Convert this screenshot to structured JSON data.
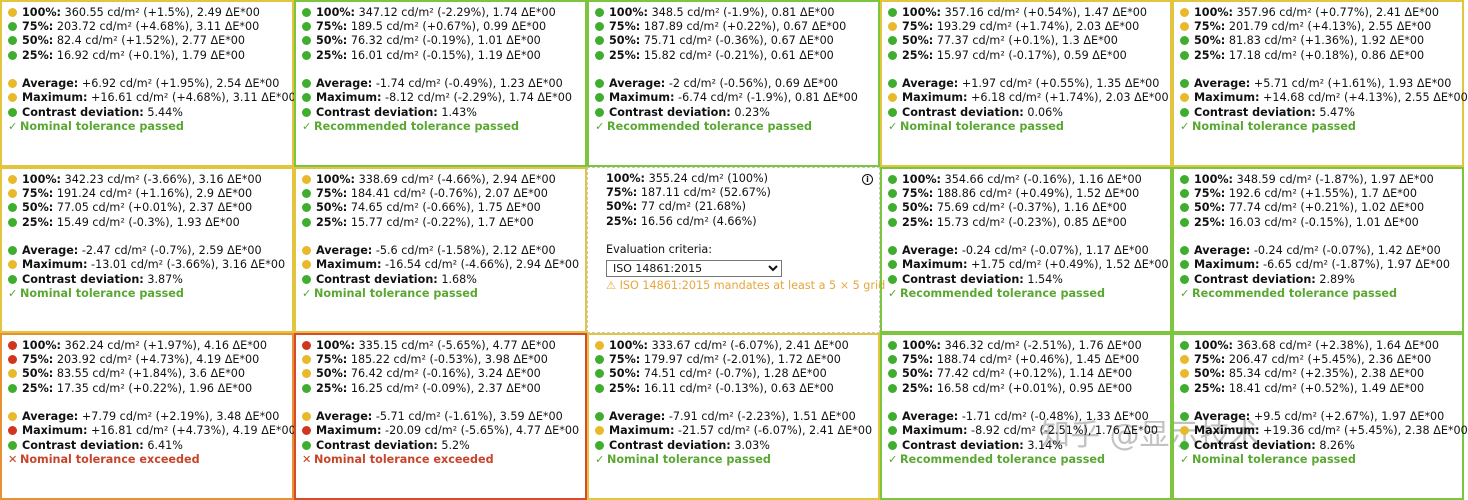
{
  "colors": {
    "green": "#3fae2e",
    "yellow": "#e8b92a",
    "orange": "#e87f24",
    "red": "#d0351e",
    "pass_text": "#5aa832",
    "fail_text": "#c8442a",
    "warning_text": "#e8a63b"
  },
  "labels": {
    "p100": "100%:",
    "p75": "75%:",
    "p50": "50%:",
    "p25": "25%:",
    "average": "Average:",
    "maximum": "Maximum:",
    "contrast": "Contrast deviation:"
  },
  "center": {
    "r100": " 355.24 cd/m² (100%)",
    "r75": " 187.11 cd/m² (52.67%)",
    "r50": " 77 cd/m² (21.68%)",
    "r25": " 16.56 cd/m² (4.66%)",
    "criteria_label": "Evaluation criteria:",
    "criteria_value": "ISO 14861:2015",
    "warning_icon": "warning-triangle-icon",
    "warning": "ISO 14861:2015 mandates at least a 5 × 5 grid",
    "info_icon": "info-icon"
  },
  "cells": [
    {
      "border": "yellow",
      "dots": [
        "yellow",
        "green",
        "green",
        "green",
        "yellow",
        "yellow",
        "green"
      ],
      "r100": " 360.55 cd/m² (+1.5%), 2.49 ΔE*00",
      "r75": " 203.72 cd/m² (+4.68%), 3.11 ΔE*00",
      "r50": " 82.4 cd/m² (+1.52%), 2.77 ΔE*00",
      "r25": " 16.92 cd/m² (+0.1%), 1.79 ΔE*00",
      "average": " +6.92 cd/m² (+1.95%), 2.54 ΔE*00",
      "maximum": " +16.61 cd/m² (+4.68%), 3.11 ΔE*00",
      "contrast": " 5.44%",
      "status": "pass",
      "status_text": "Nominal tolerance passed"
    },
    {
      "border": "green",
      "dots": [
        "green",
        "green",
        "green",
        "green",
        "green",
        "green",
        "green"
      ],
      "r100": " 347.12 cd/m² (-2.29%), 1.74 ΔE*00",
      "r75": " 189.5 cd/m² (+0.67%), 0.99 ΔE*00",
      "r50": " 76.32 cd/m² (-0.19%), 1.01 ΔE*00",
      "r25": " 16.01 cd/m² (-0.15%), 1.19 ΔE*00",
      "average": " -1.74 cd/m² (-0.49%), 1.23 ΔE*00",
      "maximum": " -8.12 cd/m² (-2.29%), 1.74 ΔE*00",
      "contrast": " 1.43%",
      "status": "pass",
      "status_text": "Recommended tolerance passed"
    },
    {
      "border": "green",
      "dots": [
        "green",
        "green",
        "green",
        "green",
        "green",
        "green",
        "green"
      ],
      "r100": " 348.5 cd/m² (-1.9%), 0.81 ΔE*00",
      "r75": " 187.89 cd/m² (+0.22%), 0.67 ΔE*00",
      "r50": " 75.71 cd/m² (-0.36%), 0.67 ΔE*00",
      "r25": " 15.82 cd/m² (-0.21%), 0.61 ΔE*00",
      "average": " -2 cd/m² (-0.56%), 0.69 ΔE*00",
      "maximum": " -6.74 cd/m² (-1.9%), 0.81 ΔE*00",
      "contrast": " 0.23%",
      "status": "pass",
      "status_text": "Recommended tolerance passed"
    },
    {
      "border": "yellow",
      "dots": [
        "green",
        "yellow",
        "green",
        "green",
        "green",
        "yellow",
        "green"
      ],
      "r100": " 357.16 cd/m² (+0.54%), 1.47 ΔE*00",
      "r75": " 193.29 cd/m² (+1.74%), 2.03 ΔE*00",
      "r50": " 77.37 cd/m² (+0.1%), 1.3 ΔE*00",
      "r25": " 15.97 cd/m² (-0.17%), 0.59 ΔE*00",
      "average": " +1.97 cd/m² (+0.55%), 1.35 ΔE*00",
      "maximum": " +6.18 cd/m² (+1.74%), 2.03 ΔE*00",
      "contrast": " 0.06%",
      "status": "pass",
      "status_text": "Nominal tolerance passed"
    },
    {
      "border": "yellow",
      "dots": [
        "yellow",
        "yellow",
        "green",
        "green",
        "green",
        "yellow",
        "green"
      ],
      "r100": " 357.96 cd/m² (+0.77%), 2.41 ΔE*00",
      "r75": " 201.79 cd/m² (+4.13%), 2.55 ΔE*00",
      "r50": " 81.83 cd/m² (+1.36%), 1.92 ΔE*00",
      "r25": " 17.18 cd/m² (+0.18%), 0.86 ΔE*00",
      "average": " +5.71 cd/m² (+1.61%), 1.93 ΔE*00",
      "maximum": " +14.68 cd/m² (+4.13%), 2.55 ΔE*00",
      "contrast": " 5.47%",
      "status": "pass",
      "status_text": "Nominal tolerance passed"
    },
    {
      "border": "yellow",
      "dots": [
        "yellow",
        "yellow",
        "green",
        "green",
        "green",
        "yellow",
        "green"
      ],
      "r100": " 342.23 cd/m² (-3.66%), 3.16 ΔE*00",
      "r75": " 191.24 cd/m² (+1.16%), 2.9 ΔE*00",
      "r50": " 77.05 cd/m² (+0.01%), 2.37 ΔE*00",
      "r25": " 15.49 cd/m² (-0.3%), 1.93 ΔE*00",
      "average": " -2.47 cd/m² (-0.7%), 2.59 ΔE*00",
      "maximum": " -13.01 cd/m² (-3.66%), 3.16 ΔE*00",
      "contrast": " 3.87%",
      "status": "pass",
      "status_text": "Nominal tolerance passed"
    },
    {
      "border": "yellow",
      "dots": [
        "yellow",
        "green",
        "green",
        "green",
        "yellow",
        "yellow",
        "green"
      ],
      "r100": " 338.69 cd/m² (-4.66%), 2.94 ΔE*00",
      "r75": " 184.41 cd/m² (-0.76%), 2.07 ΔE*00",
      "r50": " 74.65 cd/m² (-0.66%), 1.75 ΔE*00",
      "r25": " 15.77 cd/m² (-0.22%), 1.7 ΔE*00",
      "average": " -5.6 cd/m² (-1.58%), 2.12 ΔE*00",
      "maximum": " -16.54 cd/m² (-4.66%), 2.94 ΔE*00",
      "contrast": " 1.68%",
      "status": "pass",
      "status_text": "Nominal tolerance passed"
    },
    null,
    {
      "border": "green",
      "dots": [
        "green",
        "green",
        "green",
        "green",
        "green",
        "green",
        "green"
      ],
      "r100": " 354.66 cd/m² (-0.16%), 1.16 ΔE*00",
      "r75": " 188.86 cd/m² (+0.49%), 1.52 ΔE*00",
      "r50": " 75.69 cd/m² (-0.37%), 1.16 ΔE*00",
      "r25": " 15.73 cd/m² (-0.23%), 0.85 ΔE*00",
      "average": " -0.24 cd/m² (-0.07%), 1.17 ΔE*00",
      "maximum": " +1.75 cd/m² (+0.49%), 1.52 ΔE*00",
      "contrast": " 1.54%",
      "status": "pass",
      "status_text": "Recommended tolerance passed"
    },
    {
      "border": "green",
      "dots": [
        "green",
        "green",
        "green",
        "green",
        "green",
        "green",
        "green"
      ],
      "r100": " 348.59 cd/m² (-1.87%), 1.97 ΔE*00",
      "r75": " 192.6 cd/m² (+1.55%), 1.7 ΔE*00",
      "r50": " 77.74 cd/m² (+0.21%), 1.02 ΔE*00",
      "r25": " 16.03 cd/m² (-0.15%), 1.01 ΔE*00",
      "average": " -0.24 cd/m² (-0.07%), 1.42 ΔE*00",
      "maximum": " -6.65 cd/m² (-1.87%), 1.97 ΔE*00",
      "contrast": " 2.89%",
      "status": "pass",
      "status_text": "Recommended tolerance passed"
    },
    {
      "border": "orange",
      "dots": [
        "red",
        "red",
        "yellow",
        "green",
        "yellow",
        "red",
        "green"
      ],
      "r100": " 362.24 cd/m² (+1.97%), 4.16 ΔE*00",
      "r75": " 203.92 cd/m² (+4.73%), 4.19 ΔE*00",
      "r50": " 83.55 cd/m² (+1.84%), 3.6 ΔE*00",
      "r25": " 17.35 cd/m² (+0.22%), 1.96 ΔE*00",
      "average": " +7.79 cd/m² (+2.19%), 3.48 ΔE*00",
      "maximum": " +16.81 cd/m² (+4.73%), 4.19 ΔE*00",
      "contrast": " 6.41%",
      "status": "fail",
      "status_text": "Nominal tolerance exceeded"
    },
    {
      "border": "red",
      "dots": [
        "red",
        "yellow",
        "yellow",
        "green",
        "yellow",
        "red",
        "green"
      ],
      "r100": " 335.15 cd/m² (-5.65%), 4.77 ΔE*00",
      "r75": " 185.22 cd/m² (-0.53%), 3.98 ΔE*00",
      "r50": " 76.42 cd/m² (-0.16%), 3.24 ΔE*00",
      "r25": " 16.25 cd/m² (-0.09%), 2.37 ΔE*00",
      "average": " -5.71 cd/m² (-1.61%), 3.59 ΔE*00",
      "maximum": " -20.09 cd/m² (-5.65%), 4.77 ΔE*00",
      "contrast": " 5.2%",
      "status": "fail",
      "status_text": "Nominal tolerance exceeded"
    },
    {
      "border": "yellow",
      "dots": [
        "yellow",
        "green",
        "green",
        "green",
        "green",
        "yellow",
        "green"
      ],
      "r100": " 333.67 cd/m² (-6.07%), 2.41 ΔE*00",
      "r75": " 179.97 cd/m² (-2.01%), 1.72 ΔE*00",
      "r50": " 74.51 cd/m² (-0.7%), 1.28 ΔE*00",
      "r25": " 16.11 cd/m² (-0.13%), 0.63 ΔE*00",
      "average": " -7.91 cd/m² (-2.23%), 1.51 ΔE*00",
      "maximum": " -21.57 cd/m² (-6.07%), 2.41 ΔE*00",
      "contrast": " 3.03%",
      "status": "pass",
      "status_text": "Nominal tolerance passed"
    },
    {
      "border": "green",
      "dots": [
        "green",
        "green",
        "green",
        "green",
        "green",
        "green",
        "green"
      ],
      "r100": " 346.32 cd/m² (-2.51%), 1.76 ΔE*00",
      "r75": " 188.74 cd/m² (+0.46%), 1.45 ΔE*00",
      "r50": " 77.42 cd/m² (+0.12%), 1.14 ΔE*00",
      "r25": " 16.58 cd/m² (+0.01%), 0.95 ΔE*00",
      "average": " -1.71 cd/m² (-0.48%), 1.33 ΔE*00",
      "maximum": " -8.92 cd/m² (-2.51%), 1.76 ΔE*00",
      "contrast": " 3.14%",
      "status": "pass",
      "status_text": "Recommended tolerance passed"
    },
    {
      "border": "green",
      "dots": [
        "green",
        "yellow",
        "yellow",
        "green",
        "green",
        "yellow",
        "green"
      ],
      "r100": " 363.68 cd/m² (+2.38%), 1.64 ΔE*00",
      "r75": " 206.47 cd/m² (+5.45%), 2.36 ΔE*00",
      "r50": " 85.34 cd/m² (+2.35%), 2.38 ΔE*00",
      "r25": " 18.41 cd/m² (+0.52%), 1.49 ΔE*00",
      "average": " +9.5 cd/m² (+2.67%), 1.97 ΔE*00",
      "maximum": " +19.36 cd/m² (+5.45%), 2.38 ΔE*00",
      "contrast": " 8.26%",
      "status": "pass",
      "status_text": "Nominal tolerance passed"
    }
  ],
  "watermark": "知乎 @显示技术"
}
